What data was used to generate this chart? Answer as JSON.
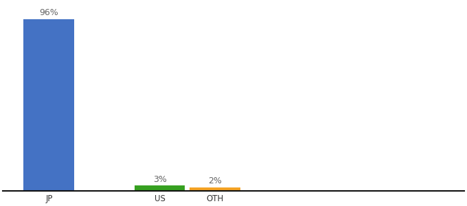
{
  "categories": [
    "JP",
    "US",
    "OTH"
  ],
  "values": [
    96,
    3,
    2
  ],
  "labels": [
    "96%",
    "3%",
    "2%"
  ],
  "bar_colors": [
    "#4472C4",
    "#36A020",
    "#F4A224"
  ],
  "background_color": "#ffffff",
  "ylim": [
    0,
    105
  ],
  "bar_width": 0.55,
  "label_fontsize": 9,
  "tick_fontsize": 8.5,
  "x_positions": [
    0,
    1.2,
    1.8
  ],
  "xlim": [
    -0.5,
    4.5
  ]
}
